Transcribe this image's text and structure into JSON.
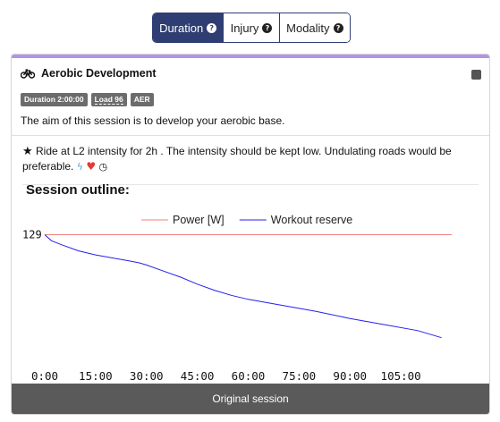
{
  "tabs": [
    {
      "label": "Duration",
      "active": true
    },
    {
      "label": "Injury",
      "active": false
    },
    {
      "label": "Modality",
      "active": false
    }
  ],
  "help_glyph": "?",
  "card": {
    "title": "Aerobic Development",
    "accent_color": "#b393e6",
    "icon": "bike-icon",
    "tags": {
      "duration": "Duration 2:00:00",
      "load": "Load 96",
      "type": "AER"
    },
    "aim": "The aim of this session is to develop your aerobic base.",
    "description": "Ride at L2 intensity for 2h . The intensity should be kept low. Undulating roads would be preferable.",
    "icons": [
      "star-icon",
      "bolt-icon",
      "heart-icon",
      "clock-icon"
    ],
    "outline_title": "Session outline:",
    "footer_button": "Original session"
  },
  "chart_data": {
    "type": "line",
    "legend_position": "top-center",
    "series": [
      {
        "name": "Power [W]",
        "color": "#f08080",
        "x": [
          0,
          120
        ],
        "y": [
          129,
          129
        ]
      },
      {
        "name": "Workout reserve",
        "color": "#2222ee",
        "x": [
          0,
          2,
          5,
          10,
          15,
          20,
          25,
          28,
          30,
          35,
          40,
          45,
          50,
          55,
          60,
          70,
          80,
          90,
          100,
          110,
          117
        ],
        "y": [
          129,
          126,
          124,
          121,
          119,
          117.5,
          116,
          115,
          114,
          111,
          108,
          104.5,
          101.5,
          99,
          97,
          94,
          91,
          87.5,
          84.5,
          81.5,
          78
        ]
      }
    ],
    "x_ticks": [
      "0:00",
      "15:00",
      "30:00",
      "45:00",
      "60:00",
      "75:00",
      "90:00",
      "105:00"
    ],
    "x_tick_values": [
      0,
      15,
      30,
      45,
      60,
      75,
      90,
      105
    ],
    "y_label_value": "129",
    "xlim": [
      0,
      120
    ],
    "ylim": [
      65,
      135
    ],
    "grid": false
  }
}
